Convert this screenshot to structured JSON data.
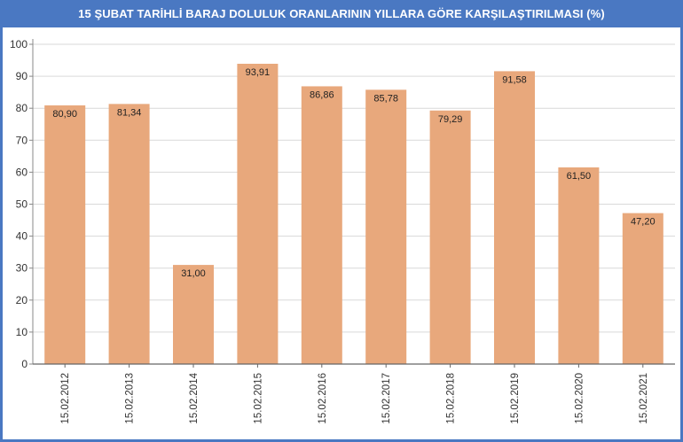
{
  "title": "15 ŞUBAT TARİHLİ BARAJ DOLULUK ORANLARININ YILLARA GÖRE KARŞILAŞTIRILMASI (%)",
  "colors": {
    "header_bg": "#4a78c2",
    "bar": "#e8a87c",
    "grid": "#d9d9d9",
    "axis": "#888888"
  },
  "chart_data": {
    "type": "bar",
    "title": "15 ŞUBAT TARİHLİ BARAJ DOLULUK ORANLARININ YILLARA GÖRE KARŞILAŞTIRILMASI (%)",
    "categories": [
      "15.02.2012",
      "15.02.2013",
      "15.02.2014",
      "15.02.2015",
      "15.02.2016",
      "15.02.2017",
      "15.02.2018",
      "15.02.2019",
      "15.02.2020",
      "15.02.2021"
    ],
    "values": [
      80.9,
      81.34,
      31.0,
      93.91,
      86.86,
      85.78,
      79.29,
      91.58,
      61.5,
      47.2
    ],
    "value_labels": [
      "80,90",
      "81,34",
      "31,00",
      "93,91",
      "86,86",
      "85,78",
      "79,29",
      "91,58",
      "61,50",
      "47,20"
    ],
    "yticks": [
      "0",
      "10",
      "20",
      "30",
      "40",
      "50",
      "60",
      "70",
      "80",
      "90",
      "100"
    ],
    "ylim": [
      0,
      100
    ],
    "grid": true,
    "legend": "none",
    "xlabel": "",
    "ylabel": ""
  }
}
